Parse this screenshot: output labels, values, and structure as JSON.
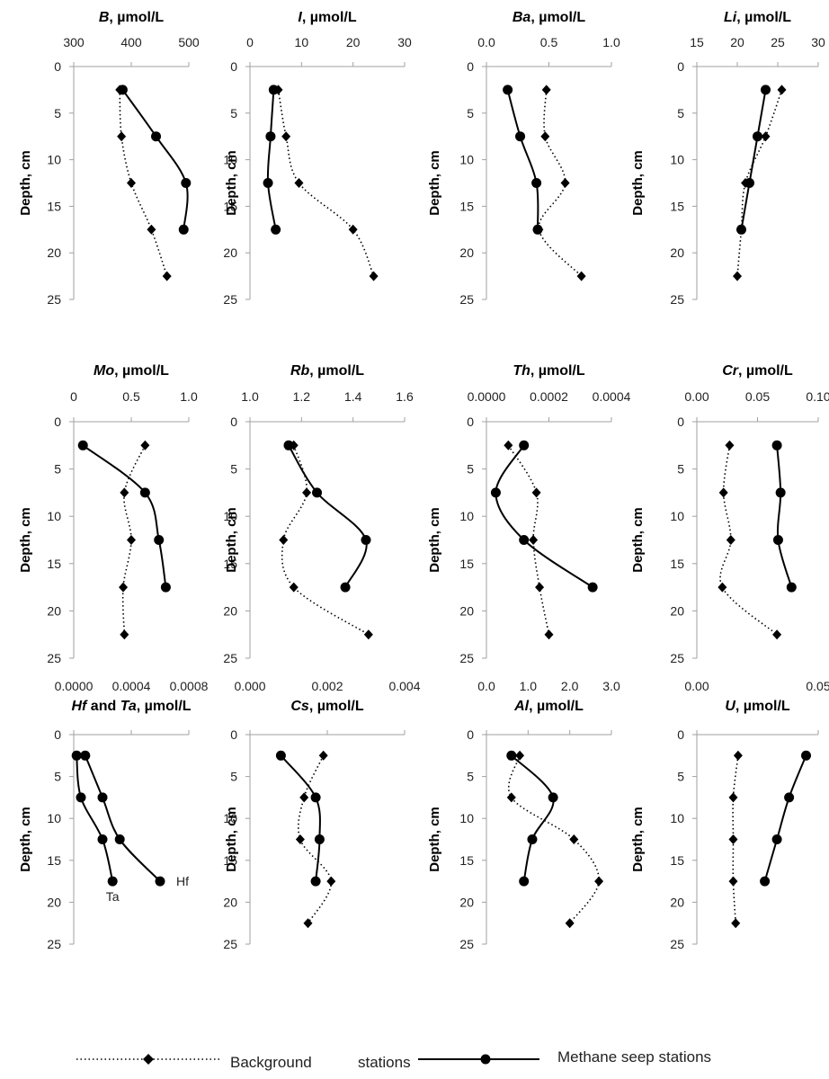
{
  "legend": {
    "background": "Background",
    "background_suffix": "stations",
    "seep": "Methane seep stations"
  },
  "chart_data": [
    {
      "type": "line",
      "element": "B",
      "unit": ", µmol/L",
      "xticks": [
        "300",
        "400",
        "500"
      ],
      "xlim": [
        300,
        500
      ],
      "ylabel": "Depth, cm",
      "yticks": [
        "0",
        "5",
        "10",
        "15",
        "20",
        "25"
      ],
      "ylim": [
        0,
        25
      ],
      "series": [
        {
          "name": "Background stations",
          "style": "dotted",
          "marker": "diamond",
          "depth": [
            2.5,
            7.5,
            12.5,
            17.5,
            22.5
          ],
          "values": [
            380,
            383,
            400,
            435,
            462
          ]
        },
        {
          "name": "Methane seep stations",
          "style": "solid",
          "marker": "circle",
          "depth": [
            2.5,
            7.5,
            12.5,
            17.5
          ],
          "values": [
            385,
            443,
            495,
            491
          ]
        }
      ]
    },
    {
      "type": "line",
      "element": "I",
      "unit": ", µmol/L",
      "xticks": [
        "0",
        "10",
        "20",
        "30"
      ],
      "xlim": [
        0,
        30
      ],
      "ylabel": "Depth, cm",
      "yticks": [
        "0",
        "5",
        "10",
        "15",
        "20",
        "25"
      ],
      "ylim": [
        0,
        25
      ],
      "series": [
        {
          "name": "Background stations",
          "style": "dotted",
          "marker": "diamond",
          "depth": [
            2.5,
            7.5,
            12.5,
            17.5,
            22.5
          ],
          "values": [
            5.5,
            7,
            9.5,
            20,
            24
          ]
        },
        {
          "name": "Methane seep stations",
          "style": "solid",
          "marker": "circle",
          "depth": [
            2.5,
            7.5,
            12.5,
            17.5
          ],
          "values": [
            4.6,
            4,
            3.5,
            5
          ]
        }
      ]
    },
    {
      "type": "line",
      "element": "Ba",
      "unit": ", µmol/L",
      "xticks": [
        "0.0",
        "0.5",
        "1.0"
      ],
      "xlim": [
        0,
        1
      ],
      "ylabel": "Depth, cm",
      "yticks": [
        "0",
        "5",
        "10",
        "15",
        "20",
        "25"
      ],
      "ylim": [
        0,
        25
      ],
      "series": [
        {
          "name": "Background stations",
          "style": "dotted",
          "marker": "diamond",
          "depth": [
            2.5,
            7.5,
            12.5,
            17.5,
            22.5
          ],
          "values": [
            0.48,
            0.47,
            0.63,
            0.42,
            0.76
          ]
        },
        {
          "name": "Methane seep stations",
          "style": "solid",
          "marker": "circle",
          "depth": [
            2.5,
            7.5,
            12.5,
            17.5
          ],
          "values": [
            0.17,
            0.27,
            0.4,
            0.41
          ]
        }
      ]
    },
    {
      "type": "line",
      "element": "Li",
      "unit": ", µmol/L",
      "xticks": [
        "15",
        "20",
        "25",
        "30"
      ],
      "xlim": [
        15,
        30
      ],
      "ylabel": "Depth, cm",
      "yticks": [
        "0",
        "5",
        "10",
        "15",
        "20",
        "25"
      ],
      "ylim": [
        0,
        25
      ],
      "series": [
        {
          "name": "Background stations",
          "style": "dotted",
          "marker": "diamond",
          "depth": [
            2.5,
            7.5,
            12.5,
            17.5,
            22.5
          ],
          "values": [
            25.5,
            23.5,
            21,
            20.5,
            20
          ]
        },
        {
          "name": "Methane seep stations",
          "style": "solid",
          "marker": "circle",
          "depth": [
            2.5,
            7.5,
            12.5,
            17.5
          ],
          "values": [
            23.5,
            22.5,
            21.5,
            20.5
          ]
        }
      ]
    },
    {
      "type": "line",
      "element": "Mo",
      "unit": ", µmol/L",
      "xticks": [
        "0",
        "0.5",
        "1.0"
      ],
      "xlim": [
        0,
        1
      ],
      "ylabel": "Depth, cm",
      "yticks": [
        "0",
        "5",
        "10",
        "15",
        "20",
        "25"
      ],
      "ylim": [
        0,
        25
      ],
      "series": [
        {
          "name": "Background stations",
          "style": "dotted",
          "marker": "diamond",
          "depth": [
            2.5,
            7.5,
            12.5,
            17.5,
            22.5
          ],
          "values": [
            0.62,
            0.44,
            0.5,
            0.43,
            0.44
          ]
        },
        {
          "name": "Methane seep stations",
          "style": "solid",
          "marker": "circle",
          "depth": [
            2.5,
            7.5,
            12.5,
            17.5
          ],
          "values": [
            0.08,
            0.62,
            0.74,
            0.8
          ]
        }
      ]
    },
    {
      "type": "line",
      "element": "Rb",
      "unit": ", µmol/L",
      "xticks": [
        "1.0",
        "1.2",
        "1.4",
        "1.6"
      ],
      "xlim": [
        1,
        1.6
      ],
      "ylabel": "Depth, cm",
      "yticks": [
        "0",
        "5",
        "10",
        "15",
        "20",
        "25"
      ],
      "ylim": [
        0,
        25
      ],
      "series": [
        {
          "name": "Background stations",
          "style": "dotted",
          "marker": "diamond",
          "depth": [
            2.5,
            7.5,
            12.5,
            17.5,
            22.5
          ],
          "values": [
            1.17,
            1.22,
            1.13,
            1.17,
            1.46
          ]
        },
        {
          "name": "Methane seep stations",
          "style": "solid",
          "marker": "circle",
          "depth": [
            2.5,
            7.5,
            12.5,
            17.5
          ],
          "values": [
            1.15,
            1.26,
            1.45,
            1.37
          ]
        }
      ]
    },
    {
      "type": "line",
      "element": "Th",
      "unit": ", µmol/L",
      "xticks": [
        "0.0000",
        "0.0002",
        "0.0004"
      ],
      "xlim": [
        0,
        0.0004
      ],
      "ylabel": "Depth, cm",
      "yticks": [
        "0",
        "5",
        "10",
        "15",
        "20",
        "25"
      ],
      "ylim": [
        0,
        25
      ],
      "series": [
        {
          "name": "Background stations",
          "style": "dotted",
          "marker": "diamond",
          "depth": [
            2.5,
            7.5,
            12.5,
            17.5,
            22.5
          ],
          "values": [
            7e-05,
            0.00016,
            0.00015,
            0.00017,
            0.0002
          ]
        },
        {
          "name": "Methane seep stations",
          "style": "solid",
          "marker": "circle",
          "depth": [
            2.5,
            7.5,
            12.5,
            17.5
          ],
          "values": [
            0.00012,
            3e-05,
            0.00012,
            0.00034
          ]
        }
      ]
    },
    {
      "type": "line",
      "element": "Cr",
      "unit": ", µmol/L",
      "xticks": [
        "0.00",
        "0.05",
        "0.10"
      ],
      "xlim": [
        0,
        0.1
      ],
      "ylabel": "Depth, cm",
      "yticks": [
        "0",
        "5",
        "10",
        "15",
        "20",
        "25"
      ],
      "ylim": [
        0,
        25
      ],
      "series": [
        {
          "name": "Background stations",
          "style": "dotted",
          "marker": "diamond",
          "depth": [
            2.5,
            7.5,
            12.5,
            17.5,
            22.5
          ],
          "values": [
            0.027,
            0.022,
            0.028,
            0.021,
            0.066
          ]
        },
        {
          "name": "Methane seep stations",
          "style": "solid",
          "marker": "circle",
          "depth": [
            2.5,
            7.5,
            12.5,
            17.5
          ],
          "values": [
            0.066,
            0.069,
            0.067,
            0.078
          ]
        }
      ]
    },
    {
      "type": "line",
      "element_hf": "Hf",
      "element_join": " and ",
      "element_ta": "Ta",
      "unit": ", µmol/L",
      "xticks": [
        "0.0000",
        "0.0004",
        "0.0008"
      ],
      "xlim": [
        0,
        0.0008
      ],
      "ylabel": "Depth, cm",
      "yticks": [
        "0",
        "5",
        "10",
        "15",
        "20",
        "25"
      ],
      "ylim": [
        0,
        25
      ],
      "annotations": {
        "hf": "Hf",
        "ta": "Ta"
      },
      "series": [
        {
          "name": "Hf",
          "style": "solid",
          "marker": "circle",
          "depth": [
            2.5,
            7.5,
            12.5,
            17.5
          ],
          "values": [
            8e-05,
            0.0002,
            0.00032,
            0.0006
          ]
        },
        {
          "name": "Ta",
          "style": "solid",
          "marker": "circle",
          "depth": [
            2.5,
            7.5,
            12.5,
            17.5
          ],
          "values": [
            2e-05,
            5e-05,
            0.0002,
            0.00027
          ]
        }
      ]
    },
    {
      "type": "line",
      "element": "Cs",
      "unit": ", µmol/L",
      "xticks": [
        "0.000",
        "0.002",
        "0.004"
      ],
      "xlim": [
        0,
        0.004
      ],
      "ylabel": "Depth, cm",
      "yticks": [
        "0",
        "5",
        "10",
        "15",
        "20",
        "25"
      ],
      "ylim": [
        0,
        25
      ],
      "series": [
        {
          "name": "Background stations",
          "style": "dotted",
          "marker": "diamond",
          "depth": [
            2.5,
            7.5,
            12.5,
            17.5,
            22.5
          ],
          "values": [
            0.0019,
            0.0014,
            0.0013,
            0.0021,
            0.0015
          ]
        },
        {
          "name": "Methane seep stations",
          "style": "solid",
          "marker": "circle",
          "depth": [
            2.5,
            7.5,
            12.5,
            17.5
          ],
          "values": [
            0.0008,
            0.0017,
            0.0018,
            0.0017
          ]
        }
      ]
    },
    {
      "type": "line",
      "element": "Al",
      "unit": ", µmol/L",
      "xticks": [
        "0.0",
        "1.0",
        "2.0",
        "3.0"
      ],
      "xlim": [
        0,
        3
      ],
      "ylabel": "Depth, cm",
      "yticks": [
        "0",
        "5",
        "10",
        "15",
        "20",
        "25"
      ],
      "ylim": [
        0,
        25
      ],
      "series": [
        {
          "name": "Background stations",
          "style": "dotted",
          "marker": "diamond",
          "depth": [
            2.5,
            7.5,
            12.5,
            17.5,
            22.5
          ],
          "values": [
            0.8,
            0.6,
            2.1,
            2.7,
            2
          ]
        },
        {
          "name": "Methane seep stations",
          "style": "solid",
          "marker": "circle",
          "depth": [
            2.5,
            7.5,
            12.5,
            17.5
          ],
          "values": [
            0.6,
            1.6,
            1.1,
            0.9
          ]
        }
      ]
    },
    {
      "type": "line",
      "element": "U",
      "unit": ", µmol/L",
      "xticks": [
        "0.00",
        "0.05"
      ],
      "xlim": [
        0,
        0.05
      ],
      "ylabel": "Depth, cm",
      "yticks": [
        "0",
        "5",
        "10",
        "15",
        "20",
        "25"
      ],
      "ylim": [
        0,
        25
      ],
      "series": [
        {
          "name": "Background stations",
          "style": "dotted",
          "marker": "diamond",
          "depth": [
            2.5,
            7.5,
            12.5,
            17.5,
            22.5
          ],
          "values": [
            0.017,
            0.015,
            0.015,
            0.015,
            0.016
          ]
        },
        {
          "name": "Methane seep stations",
          "style": "solid",
          "marker": "circle",
          "depth": [
            2.5,
            7.5,
            12.5,
            17.5
          ],
          "values": [
            0.045,
            0.038,
            0.033,
            0.028
          ]
        }
      ]
    }
  ]
}
